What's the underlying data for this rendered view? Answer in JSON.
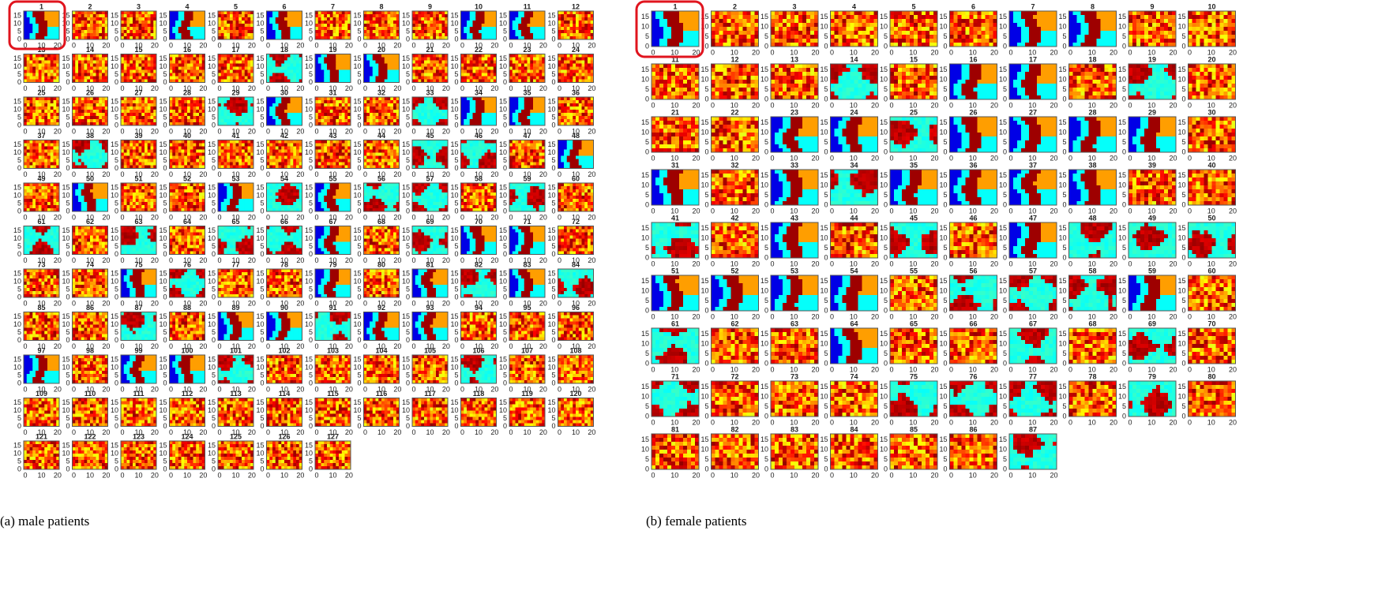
{
  "panels": [
    {
      "caption": "(a) male patients",
      "titles": [
        1,
        2,
        3,
        4,
        5,
        6,
        7,
        8,
        9,
        10,
        11,
        12,
        13,
        14,
        15,
        16,
        17,
        18,
        19,
        20,
        21,
        22,
        23,
        24,
        25,
        26,
        27,
        28,
        29,
        30,
        31,
        32,
        33,
        34,
        35,
        36,
        37,
        38,
        39,
        40,
        41,
        42,
        43,
        44,
        45,
        46,
        47,
        48,
        49,
        50,
        51,
        52,
        53,
        54,
        55,
        56,
        57,
        58,
        59,
        60,
        61,
        62,
        63,
        64,
        65,
        66,
        67,
        68,
        69,
        70,
        71,
        72,
        73,
        74,
        75,
        76,
        77,
        78,
        79,
        80,
        81,
        82,
        83,
        84,
        85,
        86,
        87,
        88,
        89,
        90,
        91,
        92,
        93,
        94,
        95,
        96,
        97,
        98,
        99,
        100,
        101,
        102,
        103,
        104,
        105,
        106,
        107,
        108,
        109,
        110,
        111,
        112,
        113,
        114,
        115,
        116,
        117,
        118,
        119,
        120,
        121,
        122,
        123,
        124,
        125,
        126,
        127
      ],
      "xticks": [
        0,
        10,
        20
      ],
      "yticks": [
        15,
        10,
        5,
        0
      ]
    },
    {
      "caption": "(b) female patients",
      "titles": [
        1,
        2,
        3,
        4,
        5,
        6,
        7,
        8,
        9,
        10,
        11,
        12,
        13,
        14,
        15,
        16,
        17,
        18,
        19,
        20,
        21,
        22,
        23,
        24,
        25,
        26,
        27,
        28,
        29,
        30,
        31,
        32,
        33,
        34,
        35,
        36,
        37,
        38,
        39,
        40,
        41,
        42,
        43,
        44,
        45,
        46,
        47,
        48,
        49,
        50,
        51,
        52,
        53,
        54,
        55,
        56,
        57,
        58,
        59,
        60,
        61,
        62,
        63,
        64,
        65,
        66,
        67,
        68,
        69,
        70,
        71,
        72,
        73,
        74,
        75,
        76,
        77,
        78,
        79,
        80,
        81,
        82,
        83,
        84,
        85,
        86,
        87
      ],
      "xticks": [
        0,
        10,
        20
      ],
      "yticks": [
        15,
        10,
        5,
        0
      ]
    }
  ]
}
